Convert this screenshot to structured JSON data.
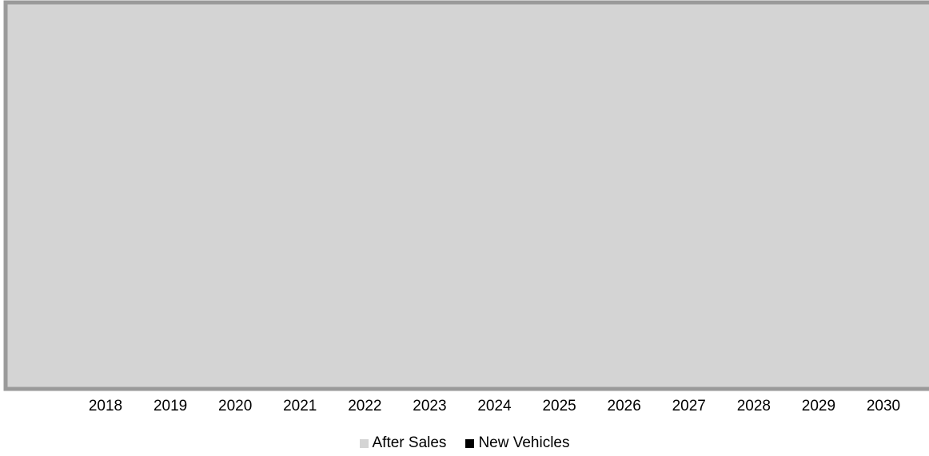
{
  "chart_data": {
    "type": "area",
    "categories": [
      "2018",
      "2019",
      "2020",
      "2021",
      "2022",
      "2023",
      "2024",
      "2025",
      "2026",
      "2027",
      "2028",
      "2029",
      "2030"
    ],
    "series": [
      {
        "name": "After Sales",
        "color": "#d4d4d4"
      },
      {
        "name": "New Vehicles",
        "color": "#000000"
      }
    ],
    "title": "",
    "xlabel": "",
    "ylabel": "",
    "grid": false,
    "legend_position": "bottom",
    "frame_color": "#9a9a9a"
  },
  "legend": {
    "items": [
      {
        "label": "After Sales",
        "color": "#d4d4d4"
      },
      {
        "label": "New Vehicles",
        "color": "#000000"
      }
    ]
  }
}
